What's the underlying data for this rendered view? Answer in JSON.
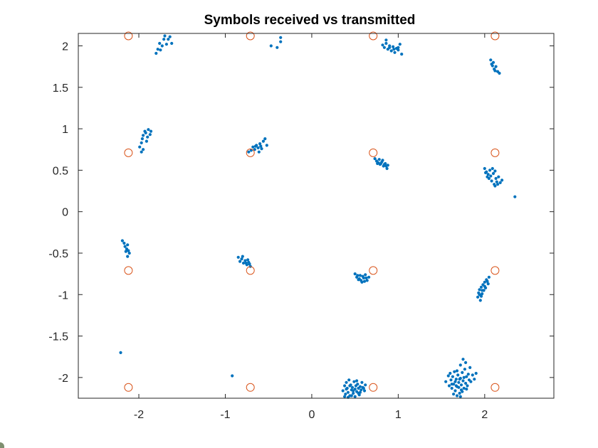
{
  "chart_data": {
    "type": "scatter",
    "title": "Symbols received vs transmitted",
    "xlabel": "",
    "ylabel": "",
    "xlim": [
      -2.7,
      2.8
    ],
    "ylim": [
      -2.25,
      2.15
    ],
    "xticks": [
      -2,
      -1,
      0,
      1,
      2
    ],
    "xticklabels": [
      "-2",
      "-1",
      "0",
      "1",
      "2"
    ],
    "yticks": [
      -2,
      -1.5,
      -1,
      -0.5,
      0,
      0.5,
      1,
      1.5,
      2
    ],
    "yticklabels": [
      "-2",
      "-1.5",
      "-1",
      "-0.5",
      "0",
      "0.5",
      "1",
      "1.5",
      "2"
    ],
    "grid": false,
    "legend": "none",
    "series": [
      {
        "marker": "dot",
        "color": "#0072BD",
        "points": [
          [
            -1.8,
            1.91
          ],
          [
            -1.78,
            1.96
          ],
          [
            -1.76,
            2.03
          ],
          [
            -1.73,
            2.0
          ],
          [
            -1.71,
            2.08
          ],
          [
            -1.7,
            2.12
          ],
          [
            -1.68,
            2.02
          ],
          [
            -1.66,
            2.08
          ],
          [
            -1.64,
            2.11
          ],
          [
            -1.62,
            2.03
          ],
          [
            -1.75,
            1.95
          ],
          [
            -0.47,
            2.0
          ],
          [
            -0.4,
            1.98
          ],
          [
            -0.36,
            2.05
          ],
          [
            -0.36,
            2.1
          ],
          [
            0.82,
            2.01
          ],
          [
            0.84,
            1.98
          ],
          [
            0.86,
            2.03
          ],
          [
            0.88,
            1.96
          ],
          [
            0.9,
            2.0
          ],
          [
            0.92,
            1.94
          ],
          [
            0.94,
            1.99
          ],
          [
            0.96,
            1.92
          ],
          [
            0.98,
            1.97
          ],
          [
            1.0,
            1.95
          ],
          [
            1.02,
            2.02
          ],
          [
            1.04,
            1.9
          ],
          [
            0.86,
            2.07
          ],
          [
            0.9,
            1.98
          ],
          [
            0.95,
            1.96
          ],
          [
            1.0,
            1.98
          ],
          [
            2.07,
            1.83
          ],
          [
            2.08,
            1.78
          ],
          [
            2.09,
            1.76
          ],
          [
            2.11,
            1.72
          ],
          [
            2.13,
            1.75
          ],
          [
            2.15,
            1.69
          ],
          [
            2.17,
            1.67
          ],
          [
            2.1,
            1.8
          ],
          [
            2.12,
            1.7
          ],
          [
            -1.99,
            0.78
          ],
          [
            -1.97,
            0.83
          ],
          [
            -1.96,
            0.88
          ],
          [
            -1.95,
            0.92
          ],
          [
            -1.93,
            0.97
          ],
          [
            -1.92,
            0.95
          ],
          [
            -1.9,
            0.9
          ],
          [
            -1.89,
            0.99
          ],
          [
            -1.87,
            0.93
          ],
          [
            -1.86,
            0.97
          ],
          [
            -1.97,
            0.72
          ],
          [
            -1.95,
            0.75
          ],
          [
            -1.91,
            0.85
          ],
          [
            -0.73,
            0.72
          ],
          [
            -0.7,
            0.74
          ],
          [
            -0.68,
            0.78
          ],
          [
            -0.66,
            0.75
          ],
          [
            -0.64,
            0.8
          ],
          [
            -0.62,
            0.77
          ],
          [
            -0.6,
            0.82
          ],
          [
            -0.58,
            0.76
          ],
          [
            -0.56,
            0.85
          ],
          [
            -0.54,
            0.88
          ],
          [
            -0.61,
            0.72
          ],
          [
            -0.65,
            0.79
          ],
          [
            -0.59,
            0.79
          ],
          [
            -0.52,
            0.8
          ],
          [
            0.73,
            0.64
          ],
          [
            0.75,
            0.61
          ],
          [
            0.77,
            0.59
          ],
          [
            0.79,
            0.57
          ],
          [
            0.81,
            0.6
          ],
          [
            0.83,
            0.55
          ],
          [
            0.85,
            0.58
          ],
          [
            0.87,
            0.52
          ],
          [
            0.78,
            0.63
          ],
          [
            0.82,
            0.62
          ],
          [
            0.84,
            0.57
          ],
          [
            0.86,
            0.55
          ],
          [
            0.76,
            0.58
          ],
          [
            0.8,
            0.58
          ],
          [
            0.88,
            0.56
          ],
          [
            2.0,
            0.52
          ],
          [
            2.02,
            0.48
          ],
          [
            2.04,
            0.45
          ],
          [
            2.05,
            0.4
          ],
          [
            2.07,
            0.43
          ],
          [
            2.08,
            0.37
          ],
          [
            2.1,
            0.46
          ],
          [
            2.11,
            0.33
          ],
          [
            2.13,
            0.4
          ],
          [
            2.14,
            0.36
          ],
          [
            2.16,
            0.42
          ],
          [
            2.18,
            0.35
          ],
          [
            2.2,
            0.38
          ],
          [
            2.06,
            0.5
          ],
          [
            2.09,
            0.52
          ],
          [
            2.12,
            0.31
          ],
          [
            2.15,
            0.33
          ],
          [
            2.03,
            0.42
          ],
          [
            2.35,
            0.18
          ],
          [
            2.01,
            0.47
          ],
          [
            2.12,
            0.49
          ],
          [
            -2.19,
            -0.35
          ],
          [
            -2.17,
            -0.38
          ],
          [
            -2.16,
            -0.42
          ],
          [
            -2.14,
            -0.45
          ],
          [
            -2.13,
            -0.4
          ],
          [
            -2.12,
            -0.47
          ],
          [
            -2.11,
            -0.5
          ],
          [
            -2.15,
            -0.48
          ],
          [
            -2.13,
            -0.54
          ],
          [
            -0.85,
            -0.55
          ],
          [
            -0.83,
            -0.6
          ],
          [
            -0.81,
            -0.57
          ],
          [
            -0.79,
            -0.62
          ],
          [
            -0.77,
            -0.59
          ],
          [
            -0.75,
            -0.64
          ],
          [
            -0.73,
            -0.61
          ],
          [
            -0.71,
            -0.66
          ],
          [
            -0.8,
            -0.54
          ],
          [
            -0.76,
            -0.62
          ],
          [
            -0.74,
            -0.58
          ],
          [
            -0.72,
            -0.63
          ],
          [
            0.5,
            -0.75
          ],
          [
            0.52,
            -0.79
          ],
          [
            0.54,
            -0.82
          ],
          [
            0.56,
            -0.77
          ],
          [
            0.58,
            -0.85
          ],
          [
            0.6,
            -0.8
          ],
          [
            0.62,
            -0.76
          ],
          [
            0.64,
            -0.83
          ],
          [
            0.66,
            -0.79
          ],
          [
            0.55,
            -0.81
          ],
          [
            0.59,
            -0.78
          ],
          [
            0.63,
            -0.8
          ],
          [
            0.61,
            -0.84
          ],
          [
            0.57,
            -0.83
          ],
          [
            0.53,
            -0.77
          ],
          [
            1.92,
            -1.03
          ],
          [
            1.93,
            -0.98
          ],
          [
            1.94,
            -0.94
          ],
          [
            1.95,
            -1.07
          ],
          [
            1.96,
            -0.91
          ],
          [
            1.97,
            -0.99
          ],
          [
            1.98,
            -0.88
          ],
          [
            1.99,
            -0.95
          ],
          [
            2.0,
            -0.85
          ],
          [
            2.01,
            -0.92
          ],
          [
            2.02,
            -0.82
          ],
          [
            2.04,
            -0.87
          ],
          [
            2.05,
            -0.79
          ],
          [
            1.94,
            -1.0
          ],
          [
            1.97,
            -0.95
          ],
          [
            2.0,
            -0.9
          ],
          [
            2.03,
            -0.84
          ],
          [
            1.96,
            -1.02
          ],
          [
            -2.21,
            -1.7
          ],
          [
            -0.92,
            -1.98
          ],
          [
            0.36,
            -2.16
          ],
          [
            0.38,
            -2.1
          ],
          [
            0.39,
            -2.2
          ],
          [
            0.4,
            -2.06
          ],
          [
            0.41,
            -2.13
          ],
          [
            0.42,
            -2.18
          ],
          [
            0.43,
            -2.03
          ],
          [
            0.44,
            -2.22
          ],
          [
            0.45,
            -2.09
          ],
          [
            0.46,
            -2.15
          ],
          [
            0.47,
            -2.12
          ],
          [
            0.48,
            -2.19
          ],
          [
            0.49,
            -2.05
          ],
          [
            0.5,
            -2.14
          ],
          [
            0.51,
            -2.1
          ],
          [
            0.52,
            -2.17
          ],
          [
            0.53,
            -2.08
          ],
          [
            0.54,
            -2.13
          ],
          [
            0.55,
            -2.21
          ],
          [
            0.56,
            -2.11
          ],
          [
            0.57,
            -2.15
          ],
          [
            0.58,
            -2.06
          ],
          [
            0.59,
            -2.12
          ],
          [
            0.61,
            -2.16
          ],
          [
            0.62,
            -2.09
          ],
          [
            0.38,
            -2.23
          ],
          [
            0.42,
            -2.24
          ],
          [
            0.46,
            -2.22
          ],
          [
            0.5,
            -2.23
          ],
          [
            0.54,
            -2.19
          ],
          [
            0.4,
            -2.14
          ],
          [
            0.44,
            -2.1
          ],
          [
            0.48,
            -2.16
          ],
          [
            0.52,
            -2.04
          ],
          [
            0.56,
            -2.18
          ],
          [
            0.6,
            -2.13
          ],
          [
            1.55,
            -2.05
          ],
          [
            1.58,
            -1.98
          ],
          [
            1.59,
            -2.1
          ],
          [
            1.6,
            -1.95
          ],
          [
            1.61,
            -2.03
          ],
          [
            1.62,
            -2.13
          ],
          [
            1.63,
            -1.99
          ],
          [
            1.64,
            -2.08
          ],
          [
            1.65,
            -1.93
          ],
          [
            1.66,
            -2.16
          ],
          [
            1.67,
            -2.02
          ],
          [
            1.68,
            -2.11
          ],
          [
            1.69,
            -1.97
          ],
          [
            1.7,
            -2.06
          ],
          [
            1.71,
            -2.19
          ],
          [
            1.72,
            -2.01
          ],
          [
            1.73,
            -2.09
          ],
          [
            1.74,
            -1.94
          ],
          [
            1.75,
            -2.04
          ],
          [
            1.76,
            -2.13
          ],
          [
            1.77,
            -1.9
          ],
          [
            1.78,
            -2.07
          ],
          [
            1.79,
            -1.99
          ],
          [
            1.8,
            -2.1
          ],
          [
            1.81,
            -1.96
          ],
          [
            1.82,
            -2.03
          ],
          [
            1.83,
            -1.88
          ],
          [
            1.84,
            -2.05
          ],
          [
            1.86,
            -1.97
          ],
          [
            1.88,
            -2.02
          ],
          [
            1.9,
            -1.95
          ],
          [
            1.75,
            -1.78
          ],
          [
            1.78,
            -1.82
          ],
          [
            1.72,
            -1.85
          ],
          [
            1.68,
            -2.22
          ],
          [
            1.72,
            -2.23
          ],
          [
            1.64,
            -2.2
          ],
          [
            1.7,
            -2.12
          ],
          [
            1.73,
            -2.15
          ],
          [
            1.76,
            -2.0
          ],
          [
            1.66,
            -2.05
          ],
          [
            1.62,
            -2.08
          ],
          [
            1.68,
            -1.92
          ],
          [
            1.74,
            -2.17
          ],
          [
            1.79,
            -2.14
          ],
          [
            1.71,
            -2.02
          ],
          [
            1.67,
            -2.1
          ]
        ]
      },
      {
        "marker": "circle",
        "color": "#D95319",
        "points": [
          [
            -2.12,
            2.12
          ],
          [
            -0.71,
            2.12
          ],
          [
            0.71,
            2.12
          ],
          [
            2.12,
            2.12
          ],
          [
            -2.12,
            0.71
          ],
          [
            -0.71,
            0.71
          ],
          [
            0.71,
            0.71
          ],
          [
            2.12,
            0.71
          ],
          [
            -2.12,
            -0.71
          ],
          [
            -0.71,
            -0.71
          ],
          [
            0.71,
            -0.71
          ],
          [
            2.12,
            -0.71
          ],
          [
            -2.12,
            -2.12
          ],
          [
            -0.71,
            -2.12
          ],
          [
            0.71,
            -2.12
          ],
          [
            2.12,
            -2.12
          ]
        ]
      }
    ]
  }
}
